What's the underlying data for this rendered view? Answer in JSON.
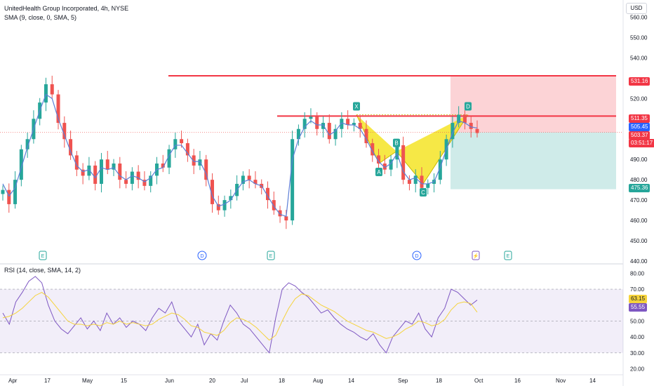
{
  "header": {
    "title": "UnitedHealth Group Incorporated, 4h, NYSE",
    "sma_legend": "SMA (9, close, 0, SMA, 5)",
    "rsi_legend": "RSI (14, close, SMA, 14, 2)",
    "currency": "USD"
  },
  "price_axis": {
    "ticks": [
      "560.00",
      "550.00",
      "540.00",
      "520.00",
      "510.00",
      "500.00",
      "490.00",
      "480.00",
      "470.00",
      "460.00",
      "450.00",
      "440.00"
    ],
    "tags": {
      "resistance": "531.16",
      "mid_line": "511.35",
      "sma": "505.45",
      "last": "503.37",
      "countdown": "03:51:17",
      "target": "475.36"
    }
  },
  "rsi_axis": {
    "ticks": [
      "80.00",
      "70.00",
      "60.00",
      "50.00",
      "40.00",
      "30.00",
      "20.00"
    ],
    "tags": {
      "rsi": "63.15",
      "rsi_ma": "55.55"
    }
  },
  "time_axis": {
    "labels": [
      "Apr",
      "17",
      "May",
      "15",
      "Jun",
      "20",
      "Jul",
      "18",
      "Aug",
      "14",
      "Sep",
      "18",
      "Oct",
      "16",
      "Nov",
      "14"
    ]
  },
  "event_markers": [
    "E",
    "D",
    "E",
    "D",
    "⚡",
    "E"
  ],
  "pattern_labels": [
    "X",
    "A",
    "B",
    "C",
    "D"
  ],
  "colors": {
    "up": "#26a69a",
    "down": "#ef5350",
    "sma": "#5b7fd6",
    "rsi": "#7e57c2",
    "rsi_ma": "#f5d33b",
    "pattern": "#f5e426",
    "level": "#f23645"
  },
  "chart_data": [
    {
      "type": "candlestick",
      "title": "UnitedHealth Group Incorporated, 4h, NYSE",
      "ylim": [
        440,
        565
      ],
      "close_path": [
        475,
        468,
        480,
        495,
        500,
        510,
        518,
        527,
        522,
        508,
        500,
        492,
        485,
        482,
        487,
        478,
        490,
        485,
        488,
        480,
        478,
        484,
        480,
        477,
        482,
        488,
        486,
        495,
        500,
        498,
        492,
        487,
        490,
        480,
        468,
        465,
        470,
        472,
        478,
        482,
        480,
        478,
        476,
        470,
        465,
        462,
        460,
        500,
        505,
        510,
        511,
        505,
        508,
        500,
        505,
        510,
        507,
        508,
        505,
        498,
        492,
        488,
        485,
        490,
        497,
        480,
        478,
        482,
        476,
        478,
        480,
        490,
        500,
        508,
        512,
        508,
        505,
        503
      ],
      "sma_path": [
        478,
        472,
        476,
        486,
        496,
        505,
        514,
        522,
        520,
        510,
        502,
        494,
        487,
        484,
        485,
        481,
        486,
        485,
        486,
        482,
        480,
        482,
        481,
        479,
        481,
        485,
        486,
        492,
        497,
        497,
        493,
        489,
        489,
        483,
        472,
        467,
        468,
        470,
        475,
        479,
        480,
        478,
        477,
        472,
        467,
        463,
        462,
        490,
        500,
        506,
        509,
        507,
        507,
        502,
        504,
        508,
        507,
        507,
        505,
        500,
        494,
        489,
        486,
        488,
        493,
        484,
        480,
        481,
        478,
        478,
        479,
        486,
        495,
        503,
        509,
        508,
        506,
        505.45
      ],
      "levels": [
        531.16,
        511.35
      ],
      "last_close": 503.37,
      "sma_last": 505.45,
      "target": 475.36
    },
    {
      "type": "line",
      "title": "RSI (14, close, SMA, 14, 2)",
      "ylim": [
        18,
        85
      ],
      "rsi_path": [
        55,
        48,
        62,
        68,
        75,
        78,
        74,
        60,
        50,
        45,
        42,
        47,
        52,
        45,
        50,
        44,
        55,
        48,
        52,
        46,
        50,
        48,
        44,
        52,
        58,
        55,
        62,
        50,
        45,
        40,
        48,
        35,
        42,
        38,
        50,
        60,
        55,
        48,
        45,
        40,
        35,
        30,
        52,
        70,
        74,
        72,
        68,
        65,
        60,
        55,
        57,
        52,
        48,
        45,
        43,
        40,
        38,
        42,
        35,
        30,
        40,
        45,
        50,
        48,
        55,
        45,
        40,
        52,
        58,
        70,
        68,
        64,
        60,
        63.15
      ],
      "rsi_ma_path": [
        52,
        53,
        55,
        58,
        62,
        66,
        68,
        65,
        60,
        55,
        50,
        48,
        48,
        47,
        48,
        47,
        49,
        48,
        50,
        48,
        49,
        48,
        47,
        48,
        51,
        53,
        55,
        54,
        51,
        47,
        46,
        43,
        42,
        41,
        44,
        49,
        52,
        51,
        49,
        46,
        42,
        38,
        41,
        50,
        58,
        64,
        67,
        66,
        63,
        60,
        58,
        56,
        53,
        50,
        48,
        46,
        44,
        43,
        41,
        39,
        40,
        42,
        45,
        47,
        50,
        49,
        47,
        48,
        51,
        57,
        61,
        62,
        61,
        55.55
      ],
      "levels": [
        70,
        50,
        30
      ]
    }
  ]
}
